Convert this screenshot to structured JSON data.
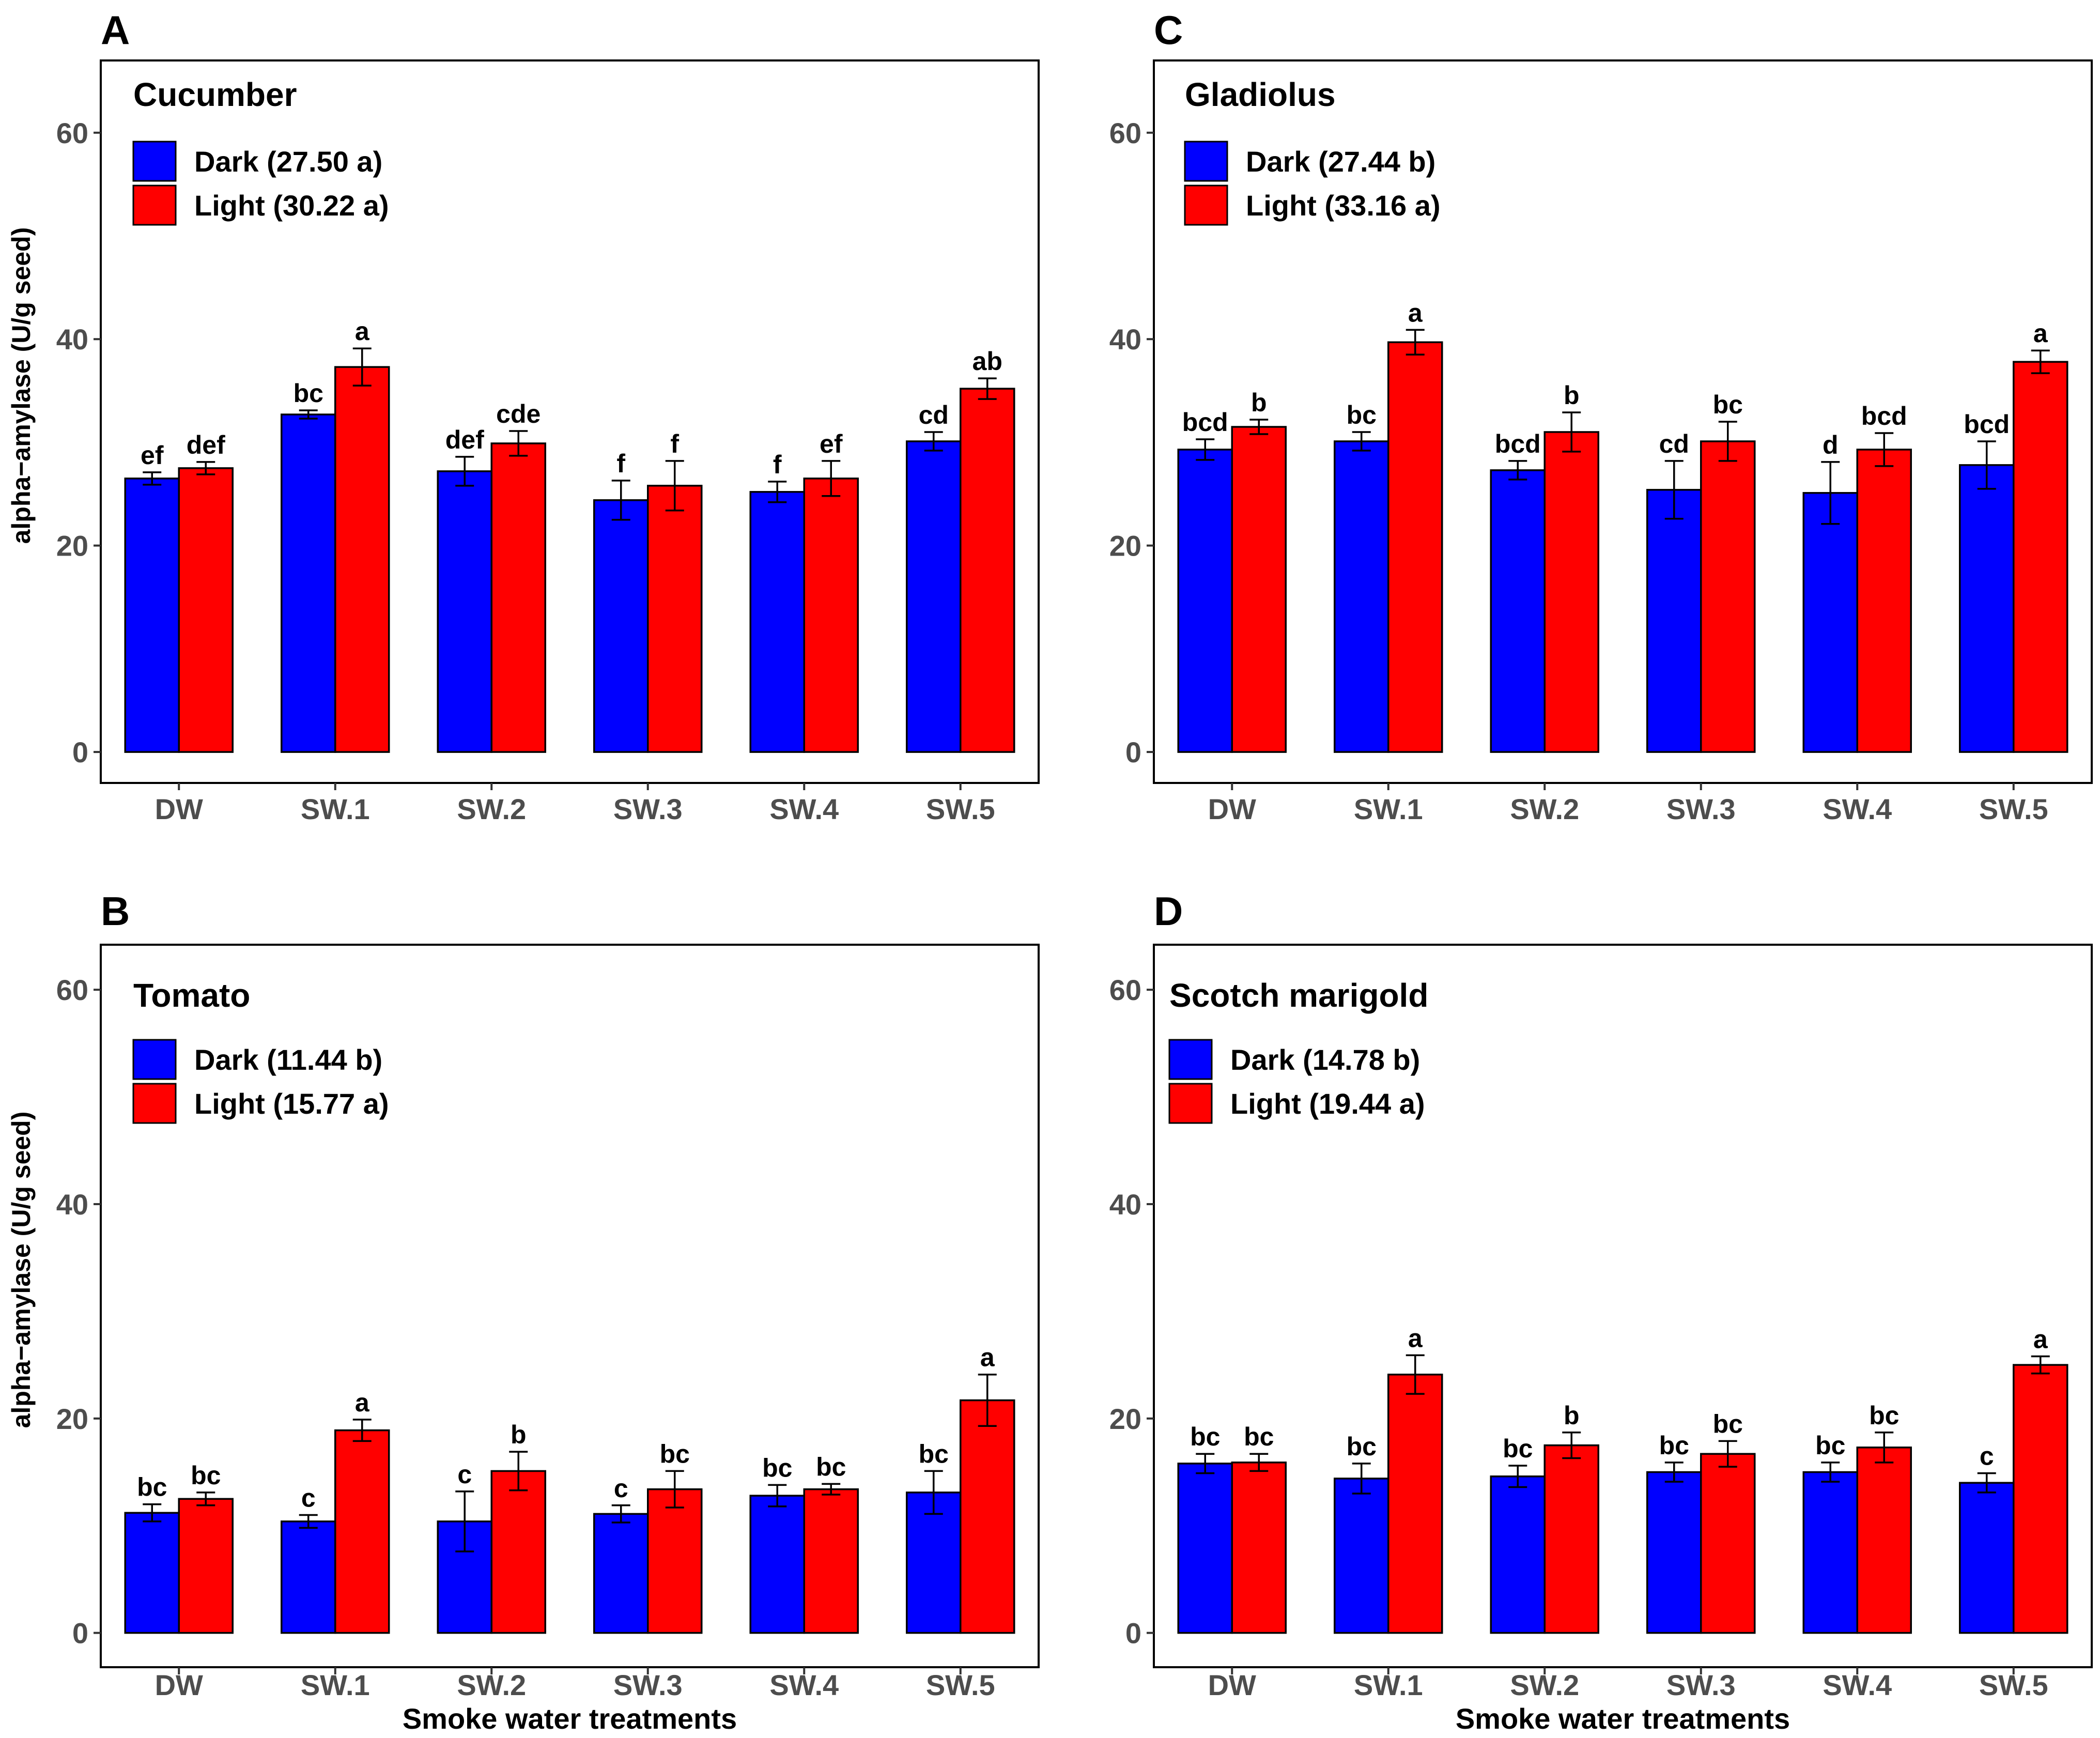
{
  "chart_data": [
    {
      "panel_letter": "A",
      "type": "bar",
      "title": "Cucumber",
      "ylabel": "alpha−amylase (U/g seed)",
      "xlabel": "",
      "ylim": [
        -3,
        67
      ],
      "yticks": [
        0,
        20,
        40,
        60
      ],
      "categories": [
        "DW",
        "SW.1",
        "SW.2",
        "SW.3",
        "SW.4",
        "SW.5"
      ],
      "series": [
        {
          "name": "Dark",
          "legend": "Dark (27.50 a)",
          "color": "#0000FF",
          "values": [
            26.5,
            32.7,
            27.2,
            24.4,
            25.2,
            30.1
          ],
          "errors": [
            0.6,
            0.4,
            1.4,
            1.9,
            1.0,
            0.9
          ],
          "letters": [
            "ef",
            "bc",
            "def",
            "f",
            "f",
            "cd"
          ]
        },
        {
          "name": "Light",
          "legend": "Light (30.22 a)",
          "color": "#FF0000",
          "values": [
            27.5,
            37.3,
            29.9,
            25.8,
            26.5,
            35.2
          ],
          "errors": [
            0.6,
            1.8,
            1.2,
            2.4,
            1.7,
            1.0
          ],
          "letters": [
            "def",
            "a",
            "cde",
            "f",
            "ef",
            "ab"
          ]
        }
      ]
    },
    {
      "panel_letter": "C",
      "type": "bar",
      "title": "Gladiolus",
      "ylabel": "",
      "xlabel": "",
      "ylim": [
        -3,
        67
      ],
      "yticks": [
        0,
        20,
        40,
        60
      ],
      "categories": [
        "DW",
        "SW.1",
        "SW.2",
        "SW.3",
        "SW.4",
        "SW.5"
      ],
      "series": [
        {
          "name": "Dark",
          "legend": "Dark (27.44 b)",
          "color": "#0000FF",
          "values": [
            29.3,
            30.1,
            27.3,
            25.4,
            25.1,
            27.8
          ],
          "errors": [
            1.0,
            0.9,
            0.9,
            2.8,
            3.0,
            2.3
          ],
          "letters": [
            "bcd",
            "bc",
            "bcd",
            "cd",
            "d",
            "bcd"
          ]
        },
        {
          "name": "Light",
          "legend": "Light (33.16 a)",
          "color": "#FF0000",
          "values": [
            31.5,
            39.7,
            31.0,
            30.1,
            29.3,
            37.8
          ],
          "errors": [
            0.7,
            1.2,
            1.9,
            1.9,
            1.6,
            1.1
          ],
          "letters": [
            "b",
            "a",
            "b",
            "bc",
            "bcd",
            "a"
          ]
        }
      ]
    },
    {
      "panel_letter": "B",
      "type": "bar",
      "title": "Tomato",
      "ylabel": "alpha−amylase (U/g seed)",
      "xlabel": "Smoke water treatments",
      "ylim": [
        -3.2,
        64.2
      ],
      "yticks": [
        0,
        20,
        40,
        60
      ],
      "categories": [
        "DW",
        "SW.1",
        "SW.2",
        "SW.3",
        "SW.4",
        "SW.5"
      ],
      "series": [
        {
          "name": "Dark",
          "legend": "Dark (11.44 b)",
          "color": "#0000FF",
          "values": [
            11.2,
            10.4,
            10.4,
            11.1,
            12.8,
            13.1
          ],
          "errors": [
            0.8,
            0.6,
            2.8,
            0.8,
            1.0,
            2.0
          ],
          "letters": [
            "bc",
            "c",
            "c",
            "c",
            "bc",
            "bc"
          ]
        },
        {
          "name": "Light",
          "legend": "Light (15.77 a)",
          "color": "#FF0000",
          "values": [
            12.5,
            18.9,
            15.1,
            13.4,
            13.4,
            21.7
          ],
          "errors": [
            0.6,
            1.0,
            1.8,
            1.7,
            0.5,
            2.4
          ],
          "letters": [
            "bc",
            "a",
            "b",
            "bc",
            "bc",
            "a"
          ]
        }
      ]
    },
    {
      "panel_letter": "D",
      "type": "bar",
      "title": "Scotch marigold",
      "ylabel": "",
      "xlabel": "Smoke water treatments",
      "ylim": [
        -3.2,
        64.2
      ],
      "yticks": [
        0,
        20,
        40,
        60
      ],
      "categories": [
        "DW",
        "SW.1",
        "SW.2",
        "SW.3",
        "SW.4",
        "SW.5"
      ],
      "series": [
        {
          "name": "Dark",
          "legend": "Dark (14.78 b)",
          "color": "#0000FF",
          "values": [
            15.8,
            14.4,
            14.6,
            15.0,
            15.0,
            14.0
          ],
          "errors": [
            0.9,
            1.4,
            1.0,
            0.9,
            0.9,
            0.9
          ],
          "letters": [
            "bc",
            "bc",
            "bc",
            "bc",
            "bc",
            "c"
          ]
        },
        {
          "name": "Light",
          "legend": "Light (19.44 a)",
          "color": "#FF0000",
          "values": [
            15.9,
            24.1,
            17.5,
            16.7,
            17.3,
            25.0
          ],
          "errors": [
            0.8,
            1.8,
            1.2,
            1.2,
            1.4,
            0.8
          ],
          "letters": [
            "bc",
            "a",
            "b",
            "bc",
            "bc",
            "a"
          ]
        }
      ]
    }
  ]
}
